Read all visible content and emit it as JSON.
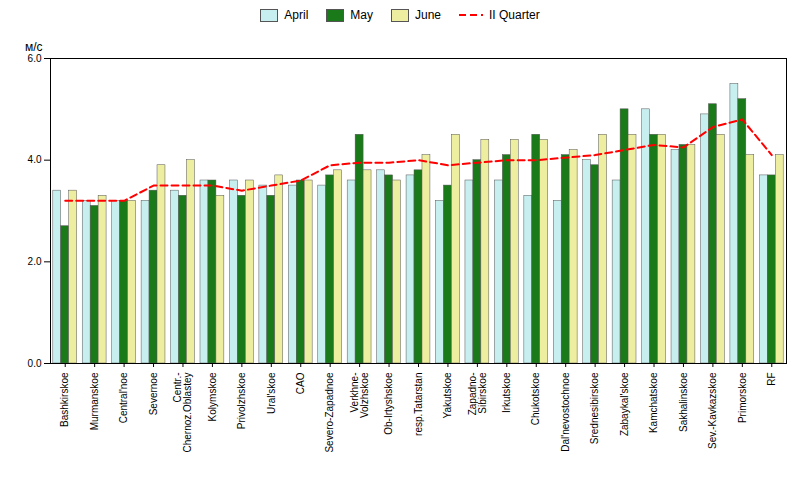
{
  "chart_data": {
    "type": "bar",
    "categories": [
      "Bashkirskoe",
      "Murmanskoe",
      "Central'noe",
      "Severnoe",
      "Centr.-\nChernoz.Oblastey",
      "Kolymskoe",
      "Privolzhskoe",
      "Ural'skoe",
      "CAO",
      "Severo-Zapadnoe",
      "Verkhne-\nVolzhskoe",
      "Ob-Irtyshskoe",
      "resp.Tatarstan",
      "Yakutskoe",
      "Zapadno-\nSibirskoe",
      "Irkutskoe",
      "Chukotskoe",
      "Dal'nevostochnoe",
      "Srednesibirskoe",
      "Zabaykal'skoe",
      "Kamchatskoe",
      "Sakhalinskoe",
      "Sev.-Kavkazskoe",
      "Primorskoe",
      "RF"
    ],
    "series": [
      {
        "name": "April",
        "color": "#c8eff0",
        "type": "bar",
        "values": [
          3.4,
          3.2,
          3.2,
          3.2,
          3.4,
          3.6,
          3.6,
          3.5,
          3.5,
          3.5,
          3.6,
          3.8,
          3.7,
          3.2,
          3.6,
          3.6,
          3.3,
          3.2,
          4.0,
          3.6,
          5.0,
          4.2,
          4.9,
          5.5,
          3.7
        ]
      },
      {
        "name": "May",
        "color": "#1a7a1a",
        "type": "bar",
        "values": [
          2.7,
          3.1,
          3.2,
          3.4,
          3.3,
          3.6,
          3.3,
          3.3,
          3.6,
          3.7,
          4.5,
          3.7,
          3.8,
          3.5,
          4.0,
          4.1,
          4.5,
          4.1,
          3.9,
          5.0,
          4.5,
          4.3,
          5.1,
          5.2,
          3.7
        ]
      },
      {
        "name": "June",
        "color": "#eeeea0",
        "type": "bar",
        "values": [
          3.4,
          3.3,
          3.2,
          3.9,
          4.0,
          3.3,
          3.6,
          3.7,
          3.6,
          3.8,
          3.8,
          3.6,
          4.1,
          4.5,
          4.4,
          4.4,
          4.4,
          4.2,
          4.5,
          4.5,
          4.5,
          4.3,
          4.5,
          4.1,
          4.1
        ]
      },
      {
        "name": "II Quarter",
        "color": "#ff0000",
        "type": "line",
        "line_style": "dashed",
        "values": [
          3.2,
          3.2,
          3.2,
          3.5,
          3.5,
          3.5,
          3.4,
          3.5,
          3.6,
          3.9,
          3.95,
          3.95,
          4.0,
          3.9,
          3.95,
          4.0,
          4.0,
          4.05,
          4.1,
          4.2,
          4.3,
          4.25,
          4.65,
          4.8,
          4.1
        ]
      }
    ],
    "ylabel": "м/с",
    "ylim": [
      0,
      6
    ],
    "yticks": [
      0,
      2,
      4,
      6
    ],
    "grid": false,
    "legend": "top"
  }
}
